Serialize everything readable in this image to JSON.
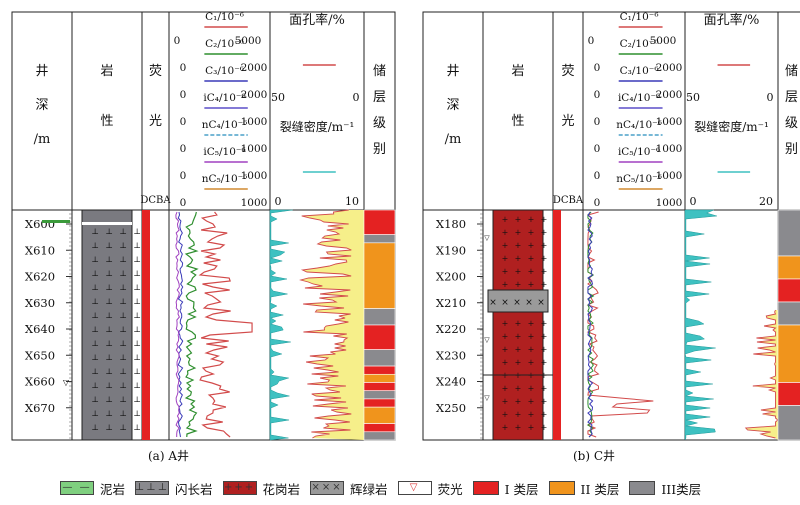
{
  "headers": {
    "depth": [
      "井",
      "深",
      "/m"
    ],
    "lithology": [
      "岩",
      "性"
    ],
    "fluor": [
      "荧",
      "光"
    ],
    "fluor_scale": "DCBA",
    "reservoir": [
      "储",
      "层",
      "级",
      "别"
    ],
    "porosity": "面孔率/%",
    "fracture": "裂缝密度/m⁻¹",
    "gas_curves": [
      {
        "label": "C₁/10⁻⁶",
        "max": "5000",
        "color": "#d24b4b"
      },
      {
        "label": "C₂/10⁻⁶",
        "max": "2000",
        "color": "#2f8f2f"
      },
      {
        "label": "C₃/10⁻⁶",
        "max": "2000",
        "color": "#3a3ab8"
      },
      {
        "label": "iC₄/10⁻⁶",
        "max": "1000",
        "color": "#5b4fc8"
      },
      {
        "label": "nC₄/10⁻⁶",
        "max": "1000",
        "color": "#4aa0c8"
      },
      {
        "label": "iC₅/10⁻⁶",
        "max": "1000",
        "color": "#a040c0"
      },
      {
        "label": "nC₅/10⁻⁶",
        "max": "1000",
        "color": "#d08a30"
      }
    ],
    "gas_min": "0"
  },
  "panels": [
    {
      "caption": "(a) A井",
      "porosity_scale": {
        "left": "50",
        "right": "0"
      },
      "fracture_scale": {
        "left": "0",
        "right": "10"
      },
      "depth_ticks": [
        "X600",
        "X610",
        "X620",
        "X630",
        "X640",
        "X650",
        "X660",
        "X670"
      ],
      "reservoir_classes": [
        "I",
        "III",
        "II",
        "III",
        "I",
        "III",
        "I",
        "II",
        "I",
        "III",
        "I",
        "II",
        "I",
        "III"
      ]
    },
    {
      "caption": "(b) C井",
      "porosity_scale": {
        "left": "50",
        "right": "0"
      },
      "fracture_scale": {
        "left": "0",
        "right": "20"
      },
      "depth_ticks": [
        "X180",
        "X190",
        "X200",
        "X210",
        "X220",
        "X230",
        "X240",
        "X250"
      ],
      "reservoir_classes": [
        "III",
        "II",
        "I",
        "III",
        "II",
        "I",
        "III"
      ]
    }
  ],
  "legend": [
    {
      "label": "泥岩",
      "color": "#7fcf7f",
      "mark": "— —"
    },
    {
      "label": "闪长岩",
      "color": "#8a8a8e",
      "mark": "⊥⊥⊥"
    },
    {
      "label": "花岗岩",
      "color": "#b02020",
      "mark": "+++"
    },
    {
      "label": "辉绿岩",
      "color": "#9a9a9a",
      "mark": "×××"
    },
    {
      "label": "荧光",
      "color": "#ffffff",
      "mark": "▽"
    },
    {
      "label": "I 类层",
      "color": "#e42222",
      "mark": ""
    },
    {
      "label": "II 类层",
      "color": "#f0941c",
      "mark": ""
    },
    {
      "label": "III类层",
      "color": "#8a8a8e",
      "mark": ""
    }
  ],
  "colors": {
    "class_I": "#e42222",
    "class_II": "#f0941c",
    "class_III": "#8a8a8e",
    "porosity": "#d24b4b",
    "fracture": "#3ec1c1",
    "fill_yellow": "#f6ef8a"
  }
}
